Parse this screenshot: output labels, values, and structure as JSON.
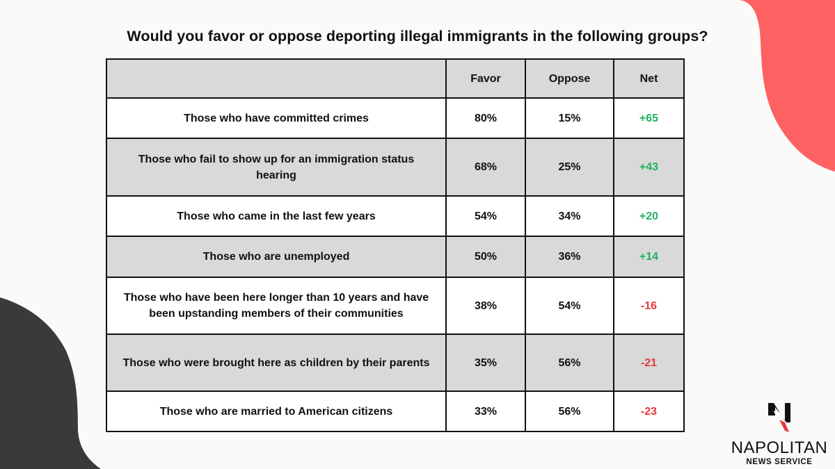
{
  "title": "Would you favor or oppose deporting illegal immigrants in the following groups?",
  "table": {
    "headers": [
      "",
      "Favor",
      "Oppose",
      "Net"
    ],
    "rows": [
      {
        "group": "Those who have committed crimes",
        "favor": "80%",
        "oppose": "15%",
        "net": "+65",
        "sign": "positive"
      },
      {
        "group": "Those who fail to show up for an immigration status hearing",
        "favor": "68%",
        "oppose": "25%",
        "net": "+43",
        "sign": "positive"
      },
      {
        "group": "Those who came in the last few years",
        "favor": "54%",
        "oppose": "34%",
        "net": "+20",
        "sign": "positive"
      },
      {
        "group": "Those who are unemployed",
        "favor": "50%",
        "oppose": "36%",
        "net": "+14",
        "sign": "positive"
      },
      {
        "group": "Those who have been here longer than 10 years and have been upstanding members of their communities",
        "favor": "38%",
        "oppose": "54%",
        "net": "-16",
        "sign": "negative"
      },
      {
        "group": "Those who were brought here as children by their parents",
        "favor": "35%",
        "oppose": "56%",
        "net": "-21",
        "sign": "negative"
      },
      {
        "group": "Those who are married to American citizens",
        "favor": "33%",
        "oppose": "56%",
        "net": "-23",
        "sign": "negative"
      }
    ]
  },
  "colors": {
    "positive": "#1eb25a",
    "negative": "#e8363c",
    "header_bg": "#d9d9d9",
    "accent_blob": "#fe6161",
    "dark_blob": "#3a3a3a"
  },
  "logo": {
    "name": "NAPOLITAN",
    "subtitle": "NEWS SERVICE",
    "icon": "eagle-n-icon"
  }
}
